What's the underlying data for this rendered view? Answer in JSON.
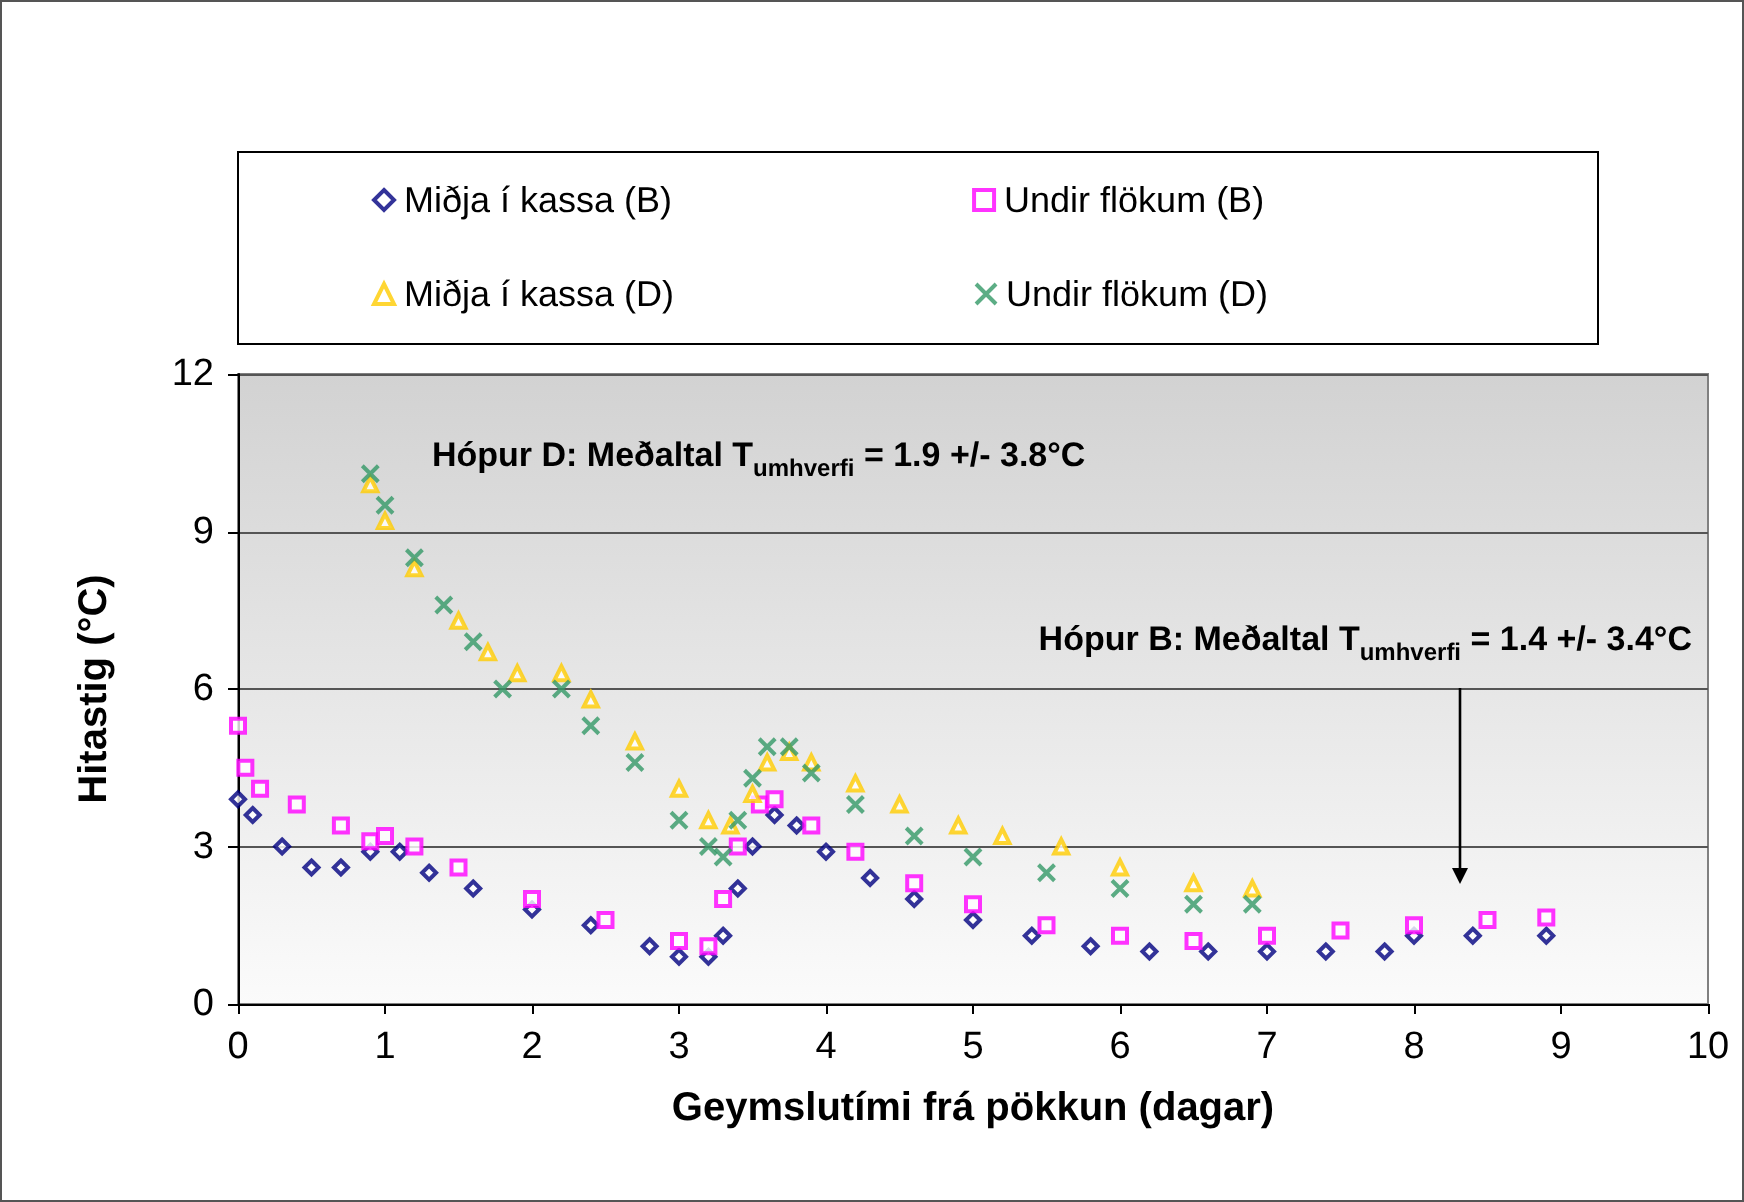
{
  "chart_data": {
    "type": "scatter",
    "xlabel": "Geymslutími frá pökkun (dagar)",
    "ylabel": "Hitastig (°C)",
    "xlim": [
      0,
      10
    ],
    "xticks": [
      0,
      1,
      2,
      3,
      4,
      5,
      6,
      7,
      8,
      9,
      10
    ],
    "ylim": [
      0,
      12
    ],
    "yticks": [
      0,
      3,
      6,
      9,
      12
    ],
    "grid": "y",
    "legend": "top",
    "annotations": [
      "Hópur D: Meðaltal T$_{umhverfi}$ = 1.9 +/- 3.8°C",
      "Hópur B: Meðaltal T$_{umhverfi}$ = 1.4 +/- 3.4°C"
    ],
    "series": [
      {
        "name": "Miðja í kassa (B)",
        "color": "#000080",
        "marker": "diamond",
        "x": [
          0,
          0.1,
          0.3,
          0.5,
          0.7,
          0.9,
          1.1,
          1.3,
          1.6,
          2.0,
          2.4,
          2.8,
          3.0,
          3.2,
          3.3,
          3.4,
          3.5,
          3.65,
          3.8,
          4.0,
          4.3,
          4.6,
          5.0,
          5.4,
          5.8,
          6.2,
          6.6,
          7.0,
          7.4,
          7.8,
          8.0,
          8.4,
          8.9
        ],
        "values": [
          3.9,
          3.6,
          3.0,
          2.6,
          2.6,
          2.9,
          2.9,
          2.5,
          2.2,
          1.8,
          1.5,
          1.1,
          0.9,
          0.9,
          1.3,
          2.2,
          3.0,
          3.6,
          3.4,
          2.9,
          2.4,
          2.0,
          1.6,
          1.3,
          1.1,
          1.0,
          1.0,
          1.0,
          1.0,
          1.0,
          1.3,
          1.3,
          1.3
        ]
      },
      {
        "name": "Undir flökum (B)",
        "color": "#ff00ff",
        "marker": "square",
        "x": [
          0,
          0.05,
          0.15,
          0.4,
          0.7,
          0.9,
          1.0,
          1.2,
          1.5,
          2.0,
          2.5,
          3.0,
          3.2,
          3.3,
          3.4,
          3.55,
          3.65,
          3.9,
          4.2,
          4.6,
          5.0,
          5.5,
          6.0,
          6.5,
          7.0,
          7.5,
          8.0,
          8.5,
          8.9
        ],
        "values": [
          5.3,
          4.5,
          4.1,
          3.8,
          3.4,
          3.1,
          3.2,
          3.0,
          2.6,
          2.0,
          1.6,
          1.2,
          1.1,
          2.0,
          3.0,
          3.8,
          3.9,
          3.4,
          2.9,
          2.3,
          1.9,
          1.5,
          1.3,
          1.2,
          1.3,
          1.4,
          1.5,
          1.6,
          1.65
        ]
      },
      {
        "name": "Miðja í kassa (D)",
        "color": "#ffcc00",
        "marker": "triangle",
        "x": [
          0.9,
          1.0,
          1.2,
          1.5,
          1.7,
          1.9,
          2.2,
          2.4,
          2.7,
          3.0,
          3.2,
          3.35,
          3.5,
          3.6,
          3.75,
          3.9,
          4.2,
          4.5,
          4.9,
          5.2,
          5.6,
          6.0,
          6.5,
          6.9
        ],
        "values": [
          9.9,
          9.2,
          8.3,
          7.3,
          6.7,
          6.3,
          6.3,
          5.8,
          5.0,
          4.1,
          3.5,
          3.4,
          4.0,
          4.6,
          4.8,
          4.6,
          4.2,
          3.8,
          3.4,
          3.2,
          3.0,
          2.6,
          2.3,
          2.2
        ]
      },
      {
        "name": "Undir flökum (D)",
        "color": "#339966",
        "marker": "cross",
        "x": [
          0.9,
          1.0,
          1.2,
          1.4,
          1.6,
          1.8,
          2.2,
          2.4,
          2.7,
          3.0,
          3.2,
          3.3,
          3.4,
          3.5,
          3.6,
          3.75,
          3.9,
          4.2,
          4.6,
          5.0,
          5.5,
          6.0,
          6.5,
          6.9
        ],
        "values": [
          10.1,
          9.5,
          8.5,
          7.6,
          6.9,
          6.0,
          6.0,
          5.3,
          4.6,
          3.5,
          3.0,
          2.8,
          3.5,
          4.3,
          4.9,
          4.9,
          4.4,
          3.8,
          3.2,
          2.8,
          2.5,
          2.2,
          1.9,
          1.9
        ]
      }
    ]
  }
}
